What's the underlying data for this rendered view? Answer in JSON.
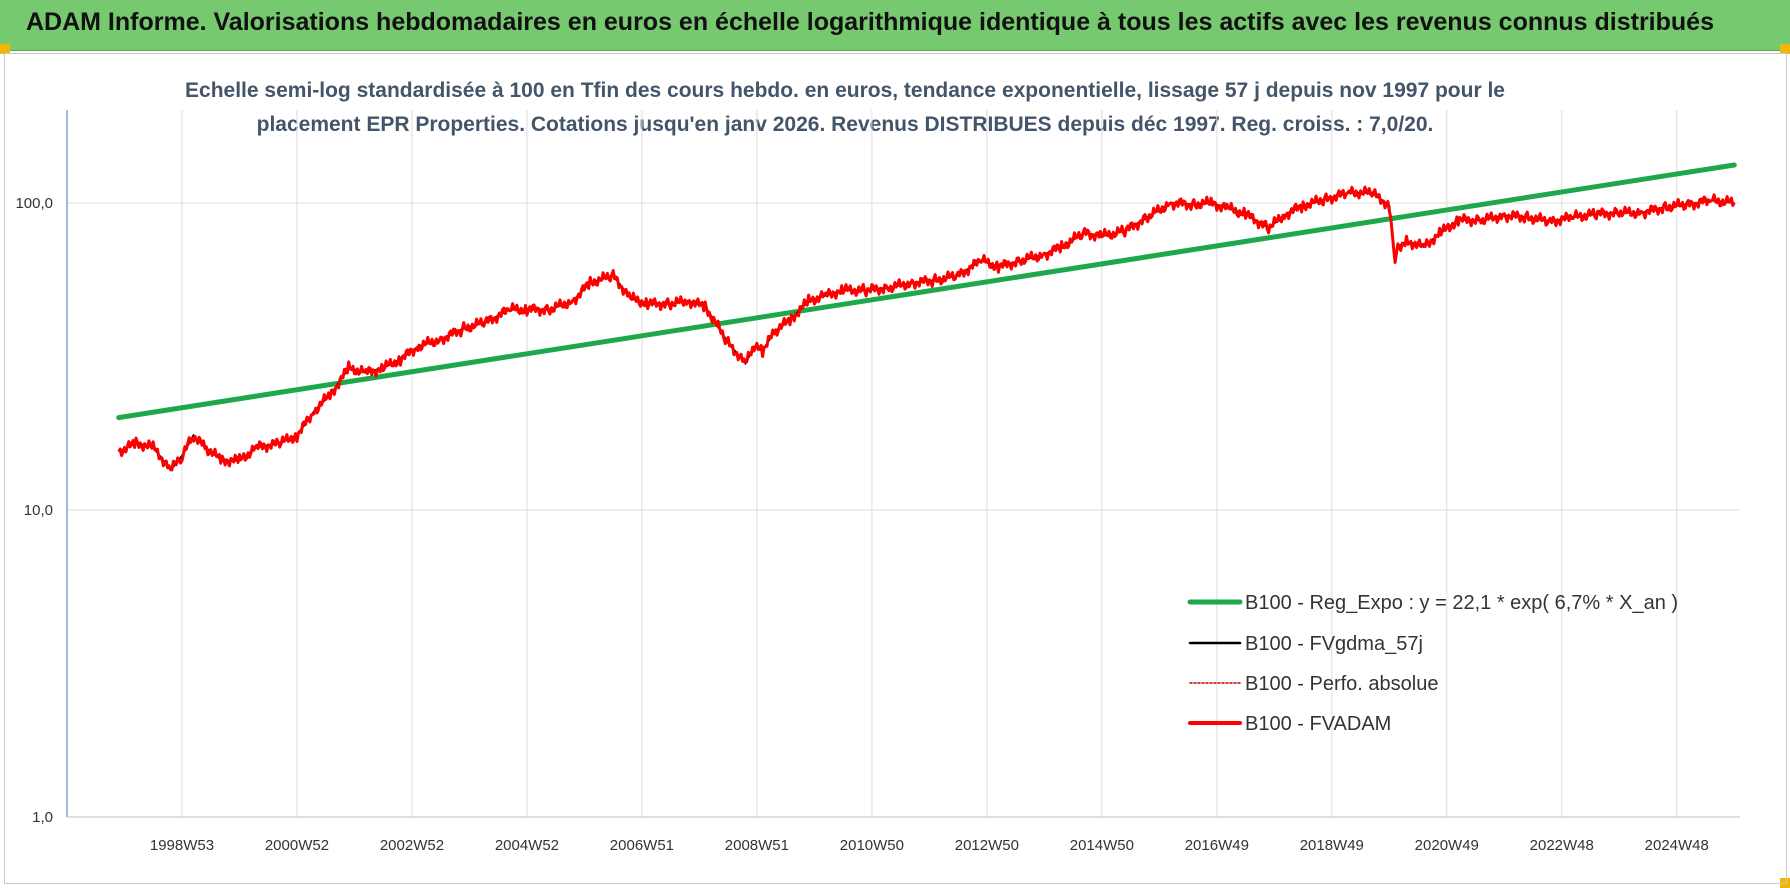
{
  "header": {
    "title": "ADAM Informe. Valorisations hebdomadaires en euros en échelle logarithmique identique à tous les actifs avec les revenus connus distribués"
  },
  "colors": {
    "header_bg": "#77c96f",
    "accent_corner": "#f2b705",
    "trend": "#1fa84a",
    "smooth": "#000000",
    "perfo": "#c00000",
    "fvadam": "#ff0000"
  },
  "chart_data": {
    "type": "line",
    "scale_y": "log",
    "subtitle_line1": "Echelle semi-log standardisée à 100 en Tfin des cours hebdo. en euros, tendance exponentielle, lissage 57 j depuis nov 1997 pour le",
    "subtitle_line2": "placement EPR Properties. Cotations jusqu'en janv 2026. Revenus DISTRIBUES depuis déc 1997. Reg. croiss. : 7,0/20.",
    "y_ticks": [
      "1,0",
      "10,0",
      "100,0"
    ],
    "ylim": [
      1,
      200
    ],
    "x_tick_labels": [
      "1998W53",
      "2000W52",
      "2002W52",
      "2004W52",
      "2006W51",
      "2008W51",
      "2010W50",
      "2012W50",
      "2014W50",
      "2016W49",
      "2018W49",
      "2020W49",
      "2022W48",
      "2024W48"
    ],
    "x_tick_years": [
      1999.0,
      2001.0,
      2003.0,
      2005.0,
      2007.0,
      2009.0,
      2011.0,
      2013.0,
      2015.0,
      2017.0,
      2019.0,
      2021.0,
      2023.0,
      2025.0
    ],
    "xlim": [
      1997.0,
      2026.1
    ],
    "grid": true,
    "legend_position": "lower-right",
    "legend": [
      {
        "name": "B100 - Reg_Expo : y = 22,1 * exp( 6,7% *  X_an )",
        "style": "trend"
      },
      {
        "name": "B100 - FVgdma_57j",
        "style": "smooth"
      },
      {
        "name": "B100 - Perfo. absolue",
        "style": "perfo"
      },
      {
        "name": "B100 - FVADAM",
        "style": "fvadam"
      }
    ],
    "series": [
      {
        "name": "B100 - Reg_Expo : y = 22,1 * exp( 6,7% *  X_an )",
        "x": [
          1997.9,
          2026.0
        ],
        "y": [
          20.0,
          133.0
        ]
      },
      {
        "name": "B100 - FVADAM",
        "x": [
          1997.9,
          1998.2,
          1998.5,
          1998.8,
          1999.0,
          1999.2,
          1999.4,
          1999.7,
          2000.0,
          2000.3,
          2000.7,
          2001.0,
          2001.3,
          2001.6,
          2001.9,
          2002.2,
          2002.5,
          2002.8,
          2003.1,
          2003.5,
          2003.9,
          2004.3,
          2004.7,
          2005.0,
          2005.4,
          2005.8,
          2006.1,
          2006.5,
          2006.8,
          2007.1,
          2007.5,
          2007.8,
          2008.1,
          2008.5,
          2008.8,
          2008.95,
          2009.1,
          2009.3,
          2009.6,
          2009.9,
          2010.2,
          2010.5,
          2010.9,
          2011.3,
          2011.7,
          2012.1,
          2012.5,
          2012.9,
          2013.2,
          2013.6,
          2014.0,
          2014.3,
          2014.7,
          2015.0,
          2015.4,
          2015.8,
          2016.2,
          2016.6,
          2016.9,
          2017.2,
          2017.5,
          2017.9,
          2018.2,
          2018.5,
          2018.9,
          2019.3,
          2019.7,
          2020.0,
          2020.1,
          2020.15,
          2020.3,
          2020.6,
          2020.9,
          2021.2,
          2021.6,
          2022.0,
          2022.4,
          2022.8,
          2023.2,
          2023.6,
          2024.0,
          2024.4,
          2024.8,
          2025.2,
          2025.6,
          2026.0
        ],
        "y": [
          15.5,
          16.5,
          16.0,
          13.5,
          15.0,
          17.5,
          16.0,
          14.5,
          14.5,
          16.0,
          16.5,
          17.5,
          21.0,
          24.0,
          29.0,
          28.0,
          29.0,
          31.0,
          34.0,
          36.0,
          39.0,
          41.0,
          45.0,
          45.0,
          45.0,
          48.0,
          55.0,
          58.0,
          49.0,
          47.0,
          47.0,
          48.0,
          46.0,
          35.0,
          30.0,
          34.0,
          33.0,
          38.0,
          42.0,
          48.0,
          50.0,
          52.0,
          52.0,
          53.0,
          55.0,
          56.0,
          58.0,
          65.0,
          62.0,
          65.0,
          68.0,
          72.0,
          80.0,
          78.0,
          81.0,
          90.0,
          100.0,
          99.0,
          100.0,
          96.0,
          92.0,
          83.0,
          92.0,
          98.0,
          103.0,
          108.0,
          108.0,
          98.0,
          65.0,
          72.0,
          75.0,
          72.0,
          80.0,
          88.0,
          88.0,
          91.0,
          90.0,
          87.0,
          90.0,
          92.0,
          93.0,
          93.0,
          97.0,
          99.0,
          102.0,
          100.0
        ]
      }
    ]
  }
}
